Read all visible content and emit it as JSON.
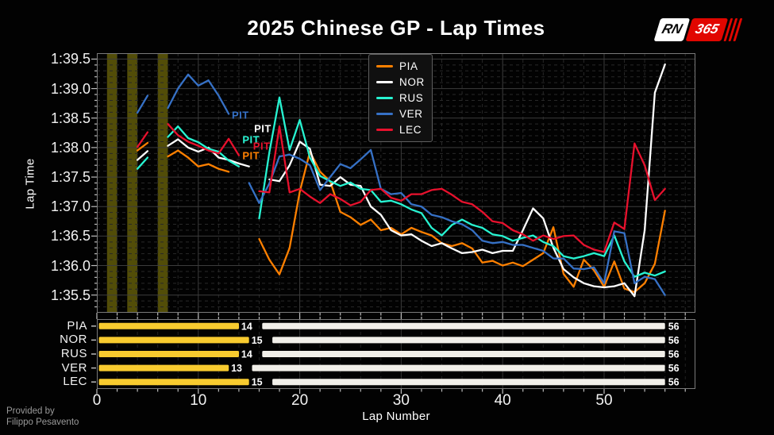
{
  "header": {
    "title": "2025 Chinese GP - Lap Times"
  },
  "logo": {
    "rn": "RN",
    "num": "365"
  },
  "credit": {
    "line1": "Provided by",
    "line2": "Filippo Pesavento"
  },
  "colors": {
    "background": "#020202",
    "spine": "#7a7a7a",
    "tick": "#bbbbbb",
    "grid_major": "#3c3c3c",
    "grid_minor": "#282828",
    "caution_band": "#524d08",
    "tyre_stint1": "#f8cb2f",
    "tyre_stint2": "#f1efe9",
    "drivers": {
      "PIA": "#ff8000",
      "NOR": "#ffffff",
      "RUS": "#27f4d2",
      "VER": "#3671c6",
      "LEC": "#e8112d"
    }
  },
  "chart_data": [
    {
      "type": "line",
      "title": "2025 Chinese GP - Lap Times",
      "xlabel": "Lap Number",
      "ylabel": "Lap Time",
      "xlim": [
        0,
        59
      ],
      "ylim_seconds": [
        95.2,
        99.6
      ],
      "xticks": [
        0,
        10,
        20,
        30,
        40,
        50
      ],
      "yticks": [
        {
          "t": 99.5,
          "label": "1:39.5"
        },
        {
          "t": 99.0,
          "label": "1:39.0"
        },
        {
          "t": 98.5,
          "label": "1:38.5"
        },
        {
          "t": 98.0,
          "label": "1:38.0"
        },
        {
          "t": 97.5,
          "label": "1:37.5"
        },
        {
          "t": 97.0,
          "label": "1:37.0"
        },
        {
          "t": 96.5,
          "label": "1:36.5"
        },
        {
          "t": 96.0,
          "label": "1:36.0"
        },
        {
          "t": 95.5,
          "label": "1:35.5"
        }
      ],
      "grid": true,
      "legend_position": "upper-center",
      "caution_bands": [
        [
          1,
          2
        ],
        [
          3,
          4
        ],
        [
          6,
          7
        ]
      ],
      "pit_annotations": [
        {
          "driver": "VER",
          "label": "PIT",
          "lap": 13.3,
          "time": 98.55
        },
        {
          "driver": "NOR",
          "label": "PIT",
          "lap": 15.5,
          "time": 98.32
        },
        {
          "driver": "RUS",
          "label": "PIT",
          "lap": 14.35,
          "time": 98.14
        },
        {
          "driver": "LEC",
          "label": "PIT",
          "lap": 15.4,
          "time": 98.03
        },
        {
          "driver": "PIA",
          "label": "PIT",
          "lap": 14.35,
          "time": 97.87
        }
      ],
      "x_unit": "lap (1-56)",
      "series": [
        {
          "name": "PIA",
          "pit_lap": 14,
          "values": [
            null,
            null,
            null,
            97.95,
            98.08,
            null,
            97.85,
            97.95,
            97.83,
            97.68,
            97.72,
            97.64,
            97.59,
            null,
            null,
            96.45,
            96.1,
            95.85,
            96.3,
            97.25,
            97.93,
            97.59,
            97.43,
            96.91,
            96.82,
            96.69,
            96.78,
            96.6,
            96.64,
            96.53,
            96.64,
            96.57,
            96.51,
            96.38,
            96.33,
            96.38,
            96.29,
            96.05,
            96.08,
            96.0,
            96.05,
            95.99,
            96.1,
            96.21,
            96.65,
            95.86,
            95.64,
            96.1,
            95.92,
            95.64,
            96.07,
            95.61,
            95.55,
            95.7,
            96.03,
            96.93
          ]
        },
        {
          "name": "NOR",
          "pit_lap": 15,
          "values": [
            null,
            null,
            null,
            97.79,
            97.94,
            null,
            98.03,
            98.14,
            98.0,
            97.93,
            98.0,
            97.83,
            97.79,
            97.73,
            97.68,
            null,
            97.46,
            97.43,
            97.7,
            98.1,
            97.98,
            97.37,
            97.35,
            97.5,
            97.37,
            97.35,
            97.0,
            96.86,
            96.6,
            96.51,
            96.53,
            96.42,
            96.33,
            96.38,
            96.29,
            96.21,
            96.23,
            96.27,
            96.21,
            96.25,
            96.25,
            96.6,
            96.97,
            96.8,
            96.3,
            95.94,
            95.8,
            95.7,
            95.65,
            95.63,
            95.65,
            95.7,
            95.48,
            96.6,
            98.93,
            99.41
          ]
        },
        {
          "name": "RUS",
          "pit_lap": 14,
          "values": [
            null,
            null,
            null,
            97.64,
            97.83,
            null,
            98.18,
            98.36,
            98.16,
            98.09,
            97.98,
            97.93,
            97.78,
            97.68,
            null,
            96.8,
            97.92,
            98.85,
            97.96,
            98.47,
            97.83,
            97.52,
            97.43,
            97.35,
            97.41,
            97.3,
            97.28,
            97.08,
            97.1,
            97.04,
            96.95,
            96.89,
            96.64,
            96.51,
            96.69,
            96.78,
            96.69,
            96.64,
            96.53,
            96.5,
            96.42,
            96.47,
            96.51,
            96.4,
            96.33,
            96.16,
            96.12,
            96.16,
            96.21,
            96.16,
            96.51,
            96.07,
            95.81,
            95.88,
            95.83,
            95.9
          ]
        },
        {
          "name": "VER",
          "pit_lap": 13,
          "values": [
            null,
            null,
            null,
            98.59,
            98.88,
            null,
            98.67,
            99.0,
            99.24,
            99.05,
            99.14,
            98.88,
            98.57,
            null,
            97.4,
            97.06,
            97.39,
            97.85,
            97.88,
            97.81,
            97.7,
            97.28,
            97.5,
            97.72,
            97.65,
            97.8,
            97.96,
            97.3,
            97.21,
            97.23,
            97.04,
            97.0,
            96.86,
            96.82,
            96.75,
            96.7,
            96.6,
            96.42,
            96.38,
            96.4,
            96.35,
            96.35,
            96.3,
            96.25,
            96.12,
            96.12,
            95.95,
            95.94,
            95.97,
            95.7,
            96.58,
            96.55,
            95.7,
            95.81,
            95.77,
            95.5
          ]
        },
        {
          "name": "LEC",
          "pit_lap": 15,
          "values": [
            null,
            null,
            null,
            98.01,
            98.26,
            null,
            98.4,
            98.21,
            98.1,
            98.03,
            97.95,
            97.9,
            98.15,
            97.87,
            null,
            97.26,
            97.24,
            98.36,
            97.24,
            97.3,
            97.17,
            97.06,
            97.21,
            97.13,
            97.02,
            97.08,
            97.28,
            97.3,
            97.15,
            97.1,
            97.21,
            97.21,
            97.28,
            97.3,
            97.2,
            97.08,
            97.04,
            96.91,
            96.75,
            96.72,
            96.6,
            96.53,
            96.42,
            96.51,
            96.45,
            96.5,
            96.51,
            96.35,
            96.27,
            96.23,
            96.73,
            96.62,
            98.07,
            97.7,
            97.11,
            97.3
          ]
        }
      ]
    },
    {
      "type": "bar",
      "subtype": "tyre-stint-timeline",
      "xlim": [
        0,
        59
      ],
      "rows": [
        {
          "driver": "PIA",
          "stint1_end": 14,
          "stint1_label": "14",
          "total": 56,
          "total_label": "56"
        },
        {
          "driver": "NOR",
          "stint1_end": 15,
          "stint1_label": "15",
          "total": 56,
          "total_label": "56"
        },
        {
          "driver": "RUS",
          "stint1_end": 14,
          "stint1_label": "14",
          "total": 56,
          "total_label": "56"
        },
        {
          "driver": "VER",
          "stint1_end": 13,
          "stint1_label": "13",
          "total": 56,
          "total_label": "56"
        },
        {
          "driver": "LEC",
          "stint1_end": 15,
          "stint1_label": "15",
          "total": 56,
          "total_label": "56"
        }
      ]
    }
  ]
}
